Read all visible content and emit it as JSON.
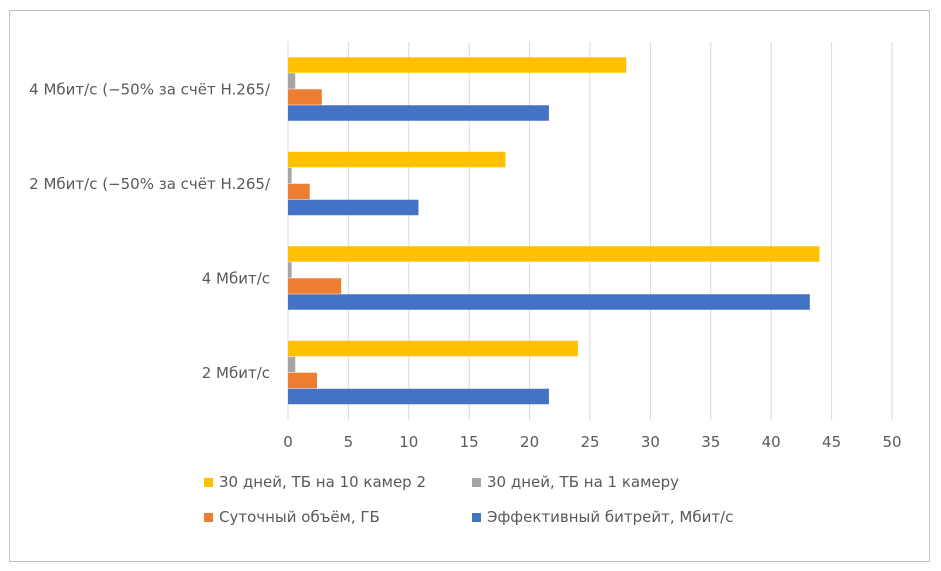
{
  "chart_data": {
    "type": "bar",
    "orientation": "horizontal",
    "title": "",
    "xlabel": "",
    "ylabel": "",
    "xlim": [
      0,
      50
    ],
    "xticks": [
      0,
      5,
      10,
      15,
      20,
      25,
      30,
      35,
      40,
      45,
      50
    ],
    "grid": true,
    "legend_position": "bottom",
    "categories": [
      "2 Мбит/с",
      "4 Мбит/с",
      "2 Мбит/с (−50% за счёт H.265/",
      "4 Мбит/с (−50% за счёт H.265/"
    ],
    "series": [
      {
        "name": "Эффективный битрейт, Мбит/с",
        "color": "#4472c4",
        "values": [
          21.6,
          43.2,
          10.8,
          21.6
        ]
      },
      {
        "name": "Суточный объём, ГБ",
        "color": "#ed7d31",
        "values": [
          2.4,
          4.4,
          1.8,
          2.8
        ]
      },
      {
        "name": "30 дней, ТБ на 1 камеру",
        "color": "#a5a5a5",
        "values": [
          0.6,
          0.3,
          0.3,
          0.6
        ]
      },
      {
        "name": "30 дней, ТБ на 10 камер 2",
        "color": "#ffc000",
        "values": [
          24,
          44,
          18,
          28
        ]
      }
    ],
    "legend_order": [
      3,
      2,
      1,
      0
    ]
  }
}
